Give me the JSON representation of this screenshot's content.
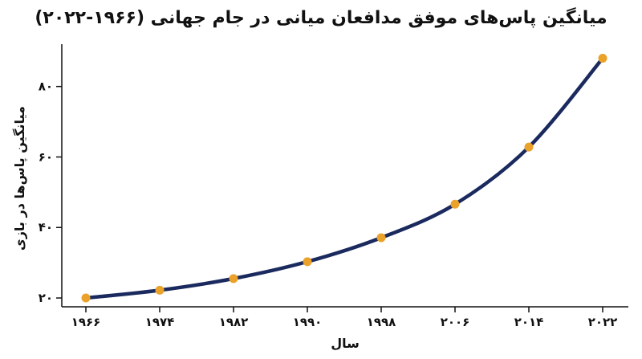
{
  "chart_data": {
    "type": "line",
    "title": "میانگین پاس‌های موفق مدافعان میانی در جام جهانی (۱۹۶۶-۲۰۲۲)",
    "xlabel": "سال",
    "ylabel": "میانگین پاس‌ها در بازی",
    "x": [
      1966,
      1974,
      1982,
      1990,
      1998,
      2006,
      2014,
      2022
    ],
    "x_tick_labels": [
      "۱۹۶۶",
      "۱۹۷۴",
      "۱۹۸۲",
      "۱۹۹۰",
      "۱۹۹۸",
      "۲۰۰۶",
      "۲۰۱۴",
      "۲۰۲۲"
    ],
    "series": [
      {
        "values": [
          20,
          22.2,
          25.5,
          30.3,
          37.1,
          46.6,
          62.8,
          88
        ]
      }
    ],
    "y_ticks": [
      20,
      40,
      60,
      80
    ],
    "y_tick_labels": [
      "۲۰",
      "۴۰",
      "۶۰",
      "۸۰"
    ],
    "ylim": [
      17.5,
      92
    ],
    "grid": false,
    "colors": {
      "line": "#1b2a5e",
      "marker": "#eaa22b"
    }
  }
}
